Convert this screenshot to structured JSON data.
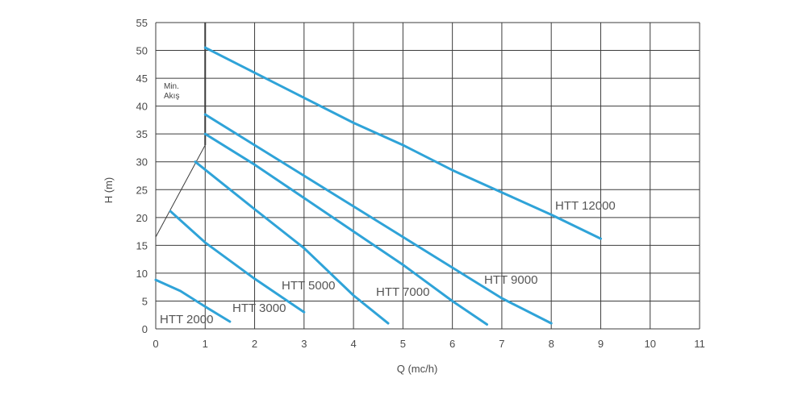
{
  "chart_data": {
    "type": "line",
    "xlabel": "Q (mc/h)",
    "ylabel": "H (m)",
    "xlim": [
      0,
      11
    ],
    "ylim": [
      0,
      55
    ],
    "x_ticks": [
      0,
      1,
      2,
      3,
      4,
      5,
      6,
      7,
      8,
      9,
      10,
      11
    ],
    "y_ticks": [
      0,
      5,
      10,
      15,
      20,
      25,
      30,
      35,
      40,
      45,
      50,
      55
    ],
    "grid": true,
    "legend": "none",
    "series_color": "#2fa3d8",
    "annotation_color": "#3c3c3c",
    "min_flow": {
      "label_line1": "Min.",
      "label_line2": "Akış",
      "x": 1,
      "line_from": [
        0,
        16.5
      ],
      "line_to": [
        1,
        33
      ]
    },
    "series": [
      {
        "name": "HTT 2000",
        "x": [
          0,
          0.5,
          1,
          1.5
        ],
        "y": [
          8.8,
          6.8,
          4.0,
          1.3
        ]
      },
      {
        "name": "HTT 3000",
        "x": [
          0.3,
          1,
          2,
          3
        ],
        "y": [
          21.1,
          15.5,
          9.0,
          3.0
        ]
      },
      {
        "name": "HTT 5000",
        "x": [
          0.8,
          2,
          3,
          4,
          4.7
        ],
        "y": [
          30.0,
          21.5,
          14.5,
          6.0,
          1.0
        ]
      },
      {
        "name": "HTT 7000",
        "x": [
          1,
          2,
          3,
          4,
          5,
          6,
          6.7
        ],
        "y": [
          35.0,
          29.5,
          23.5,
          17.5,
          11.5,
          5.0,
          0.8
        ]
      },
      {
        "name": "HTT 9000",
        "x": [
          1,
          2,
          3,
          4,
          5,
          6,
          7,
          8
        ],
        "y": [
          38.5,
          33.0,
          27.5,
          22.0,
          16.5,
          11.0,
          5.5,
          1.0
        ]
      },
      {
        "name": "HTT 12000",
        "x": [
          1,
          2,
          3,
          4,
          5,
          6,
          7,
          8,
          9
        ],
        "y": [
          50.5,
          46.0,
          41.5,
          37.0,
          33.0,
          28.5,
          24.5,
          20.5,
          16.2
        ]
      }
    ]
  }
}
